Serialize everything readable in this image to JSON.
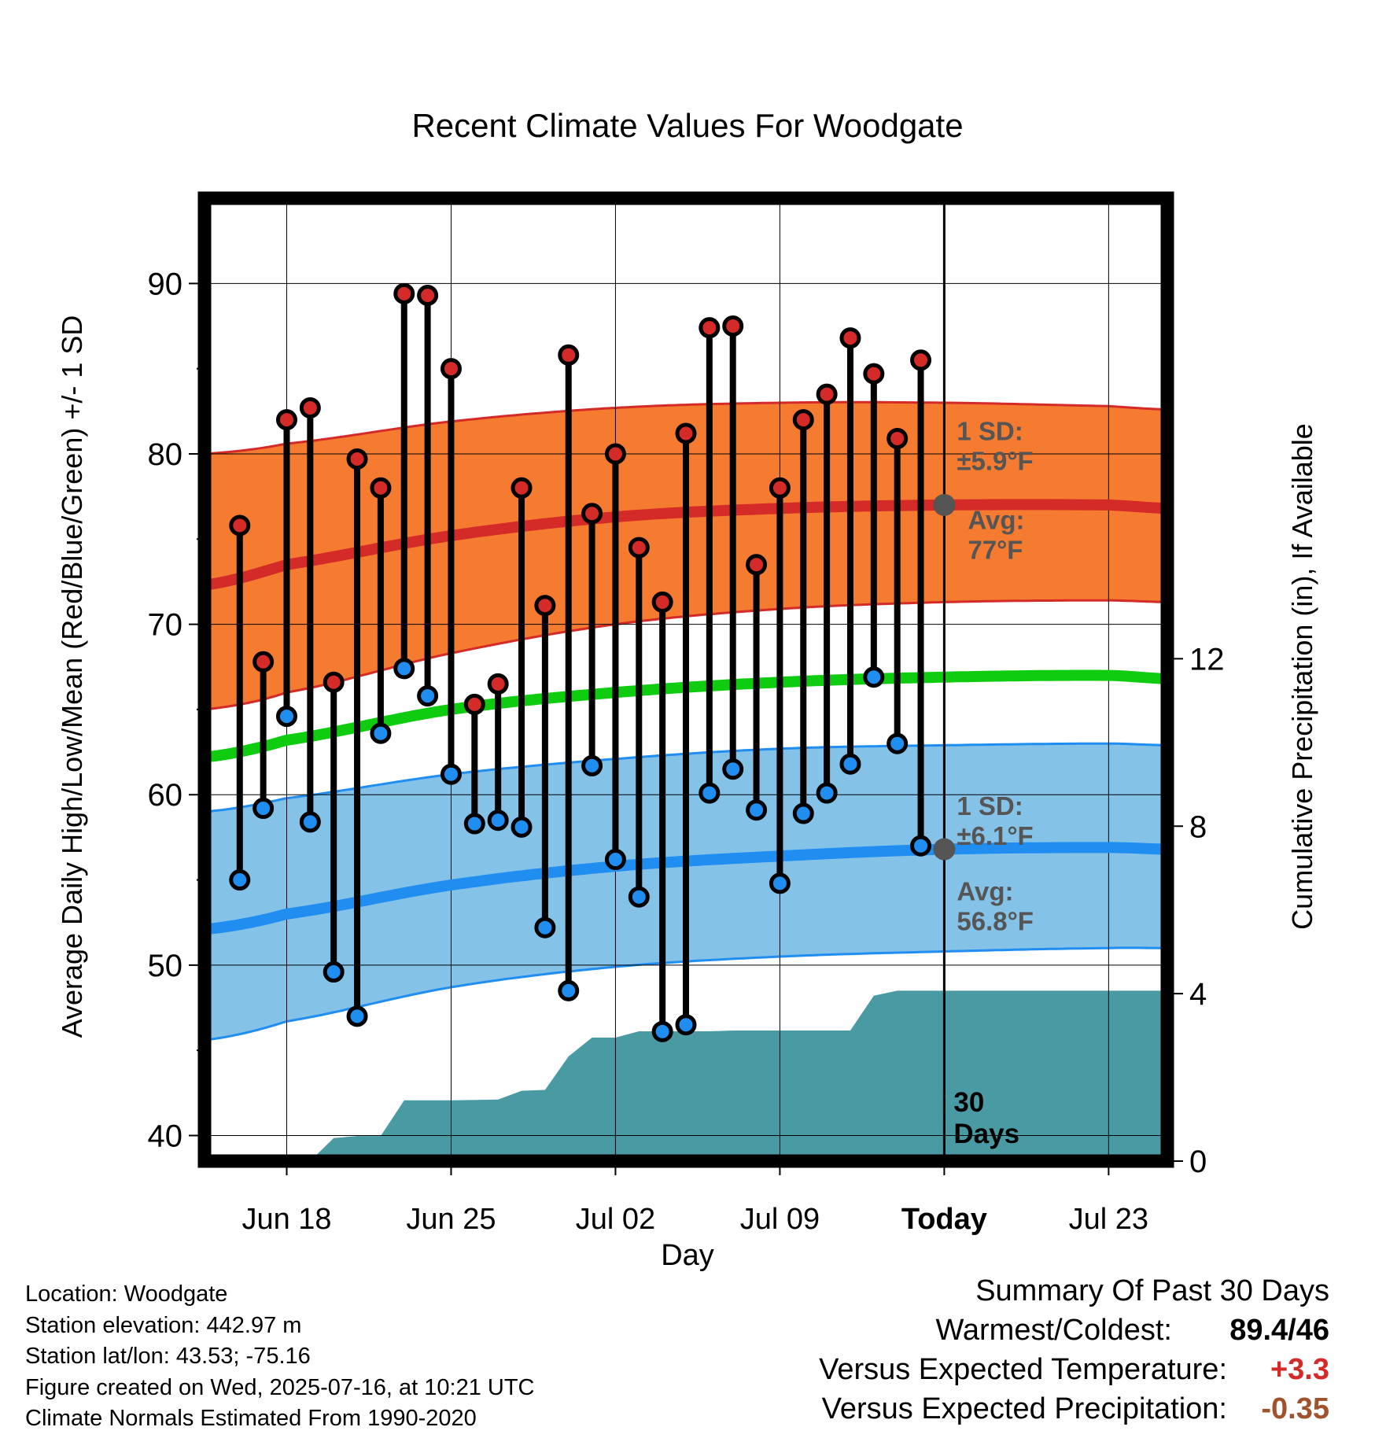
{
  "chart_data": {
    "type": "line",
    "title": "Recent Climate Values For Woodgate",
    "xlabel": "Day",
    "ylabel": "Average Daily High/Low/Mean (Red/Blue/Green) +/- 1 SD",
    "y2label": "Cumulative Precipitation (in), If Available",
    "x_tick_labels": [
      "Jun 18",
      "Jun 25",
      "Jul 02",
      "Jul 09",
      "Today",
      "Jul 23"
    ],
    "x_tick_days": [
      -28,
      -21,
      -14,
      -7,
      0,
      7
    ],
    "x_range_days": [
      -31.5,
      9.5
    ],
    "ylim": [
      38.5,
      95
    ],
    "y_ticks": [
      40,
      50,
      60,
      70,
      80,
      90
    ],
    "y2lim": [
      0,
      23
    ],
    "y2_ticks": [
      0,
      4,
      8,
      12
    ],
    "grid": true,
    "today_marker": {
      "label": "Today",
      "annotation_line1": "30",
      "annotation_line2": "Days"
    },
    "observed_days": [
      -30,
      -29,
      -28,
      -27,
      -26,
      -25,
      -24,
      -23,
      -22,
      -21,
      -20,
      -19,
      -18,
      -17,
      -16,
      -15,
      -14,
      -13,
      -12,
      -11,
      -10,
      -9,
      -8,
      -7,
      -6,
      -5,
      -4,
      -3,
      -2,
      -1
    ],
    "daily_high": [
      75.8,
      67.8,
      82.0,
      82.7,
      66.6,
      79.7,
      78.0,
      89.4,
      89.3,
      85.0,
      65.3,
      66.5,
      78.0,
      71.1,
      85.8,
      76.5,
      80.0,
      74.5,
      71.3,
      81.2,
      87.4,
      87.5,
      73.5,
      78.0,
      82.0,
      83.5,
      86.8,
      84.7,
      80.9,
      85.5
    ],
    "daily_low": [
      55.0,
      59.2,
      64.6,
      58.4,
      49.6,
      47.0,
      63.6,
      67.4,
      65.8,
      61.2,
      58.3,
      58.5,
      58.1,
      52.2,
      48.5,
      61.7,
      56.2,
      54.0,
      46.1,
      46.5,
      60.1,
      61.5,
      59.1,
      54.8,
      58.9,
      60.1,
      61.8,
      66.9,
      63.0,
      57.0
    ],
    "normals": {
      "days": [
        -31.5,
        -28,
        -21,
        -14,
        -7,
        0,
        7,
        9.5
      ],
      "avg_high": [
        72.3,
        73.5,
        75.2,
        76.3,
        76.8,
        77.0,
        77.0,
        76.8
      ],
      "high_upper": [
        80.0,
        80.6,
        81.9,
        82.7,
        83.0,
        83.0,
        82.8,
        82.6
      ],
      "high_lower": [
        65.0,
        66.0,
        68.3,
        70.0,
        70.9,
        71.3,
        71.4,
        71.3
      ],
      "avg_mean": [
        62.2,
        63.2,
        65.0,
        66.0,
        66.6,
        66.9,
        67.0,
        66.8
      ],
      "avg_low": [
        52.1,
        53.0,
        54.7,
        55.8,
        56.4,
        56.8,
        56.9,
        56.8
      ],
      "low_upper": [
        59.0,
        59.8,
        61.2,
        62.1,
        62.7,
        62.9,
        63.0,
        62.9
      ],
      "low_lower": [
        45.6,
        46.7,
        48.7,
        49.9,
        50.5,
        50.8,
        51.0,
        51.0
      ]
    },
    "precip_cumulative": {
      "days": [
        -27,
        -26,
        -25,
        -24,
        -23,
        -22,
        -21,
        -20,
        -19,
        -18,
        -17,
        -16,
        -15,
        -14,
        -13,
        -12,
        -11,
        -10,
        -9,
        -8,
        -7,
        -6,
        -5,
        -4,
        -3,
        -2,
        -1,
        0,
        9.5
      ],
      "values": [
        0,
        0.55,
        0.6,
        0.6,
        1.45,
        1.45,
        1.45,
        1.46,
        1.47,
        1.68,
        1.7,
        2.5,
        2.95,
        2.95,
        3.1,
        3.1,
        3.1,
        3.1,
        3.12,
        3.12,
        3.12,
        3.12,
        3.12,
        3.12,
        3.95,
        4.07,
        4.07,
        4.07,
        4.07
      ]
    },
    "annotations": {
      "high_sd": [
        "1 SD:",
        "±5.9°F"
      ],
      "high_avg": [
        "Avg:",
        "77°F"
      ],
      "low_sd": [
        "1 SD:",
        "±6.1°F"
      ],
      "low_avg": [
        "Avg:",
        "56.8°F"
      ]
    },
    "colors": {
      "high_band": "#f47b30",
      "high_line": "#d42a28",
      "low_band": "#85c2e8",
      "low_line": "#1f8ef0",
      "mean_line": "#10cc10",
      "precip": "#4a9aa3",
      "high_dot": "#d42a28",
      "low_dot": "#1f8ef0",
      "today_dot": "#555555",
      "annotation_text": "#555555"
    }
  },
  "footer": {
    "location": "Location: Woodgate",
    "elevation": "Station elevation: 442.97 m",
    "latlon": "Station lat/lon: 43.53; -75.16",
    "created": "Figure created on Wed, 2025-07-16, at 10:21 UTC",
    "normals": "Climate Normals Estimated From 1990-2020"
  },
  "summary": {
    "heading": "Summary Of Past 30 Days",
    "warm_cold_label": "Warmest/Coldest:",
    "warm_cold_value": "89.4/46",
    "temp_label": "Versus Expected Temperature:",
    "temp_value": "+3.3",
    "temp_color": "#d42a28",
    "precip_label": "Versus Expected Precipitation:",
    "precip_value": "-0.35",
    "precip_color": "#a0522d"
  }
}
